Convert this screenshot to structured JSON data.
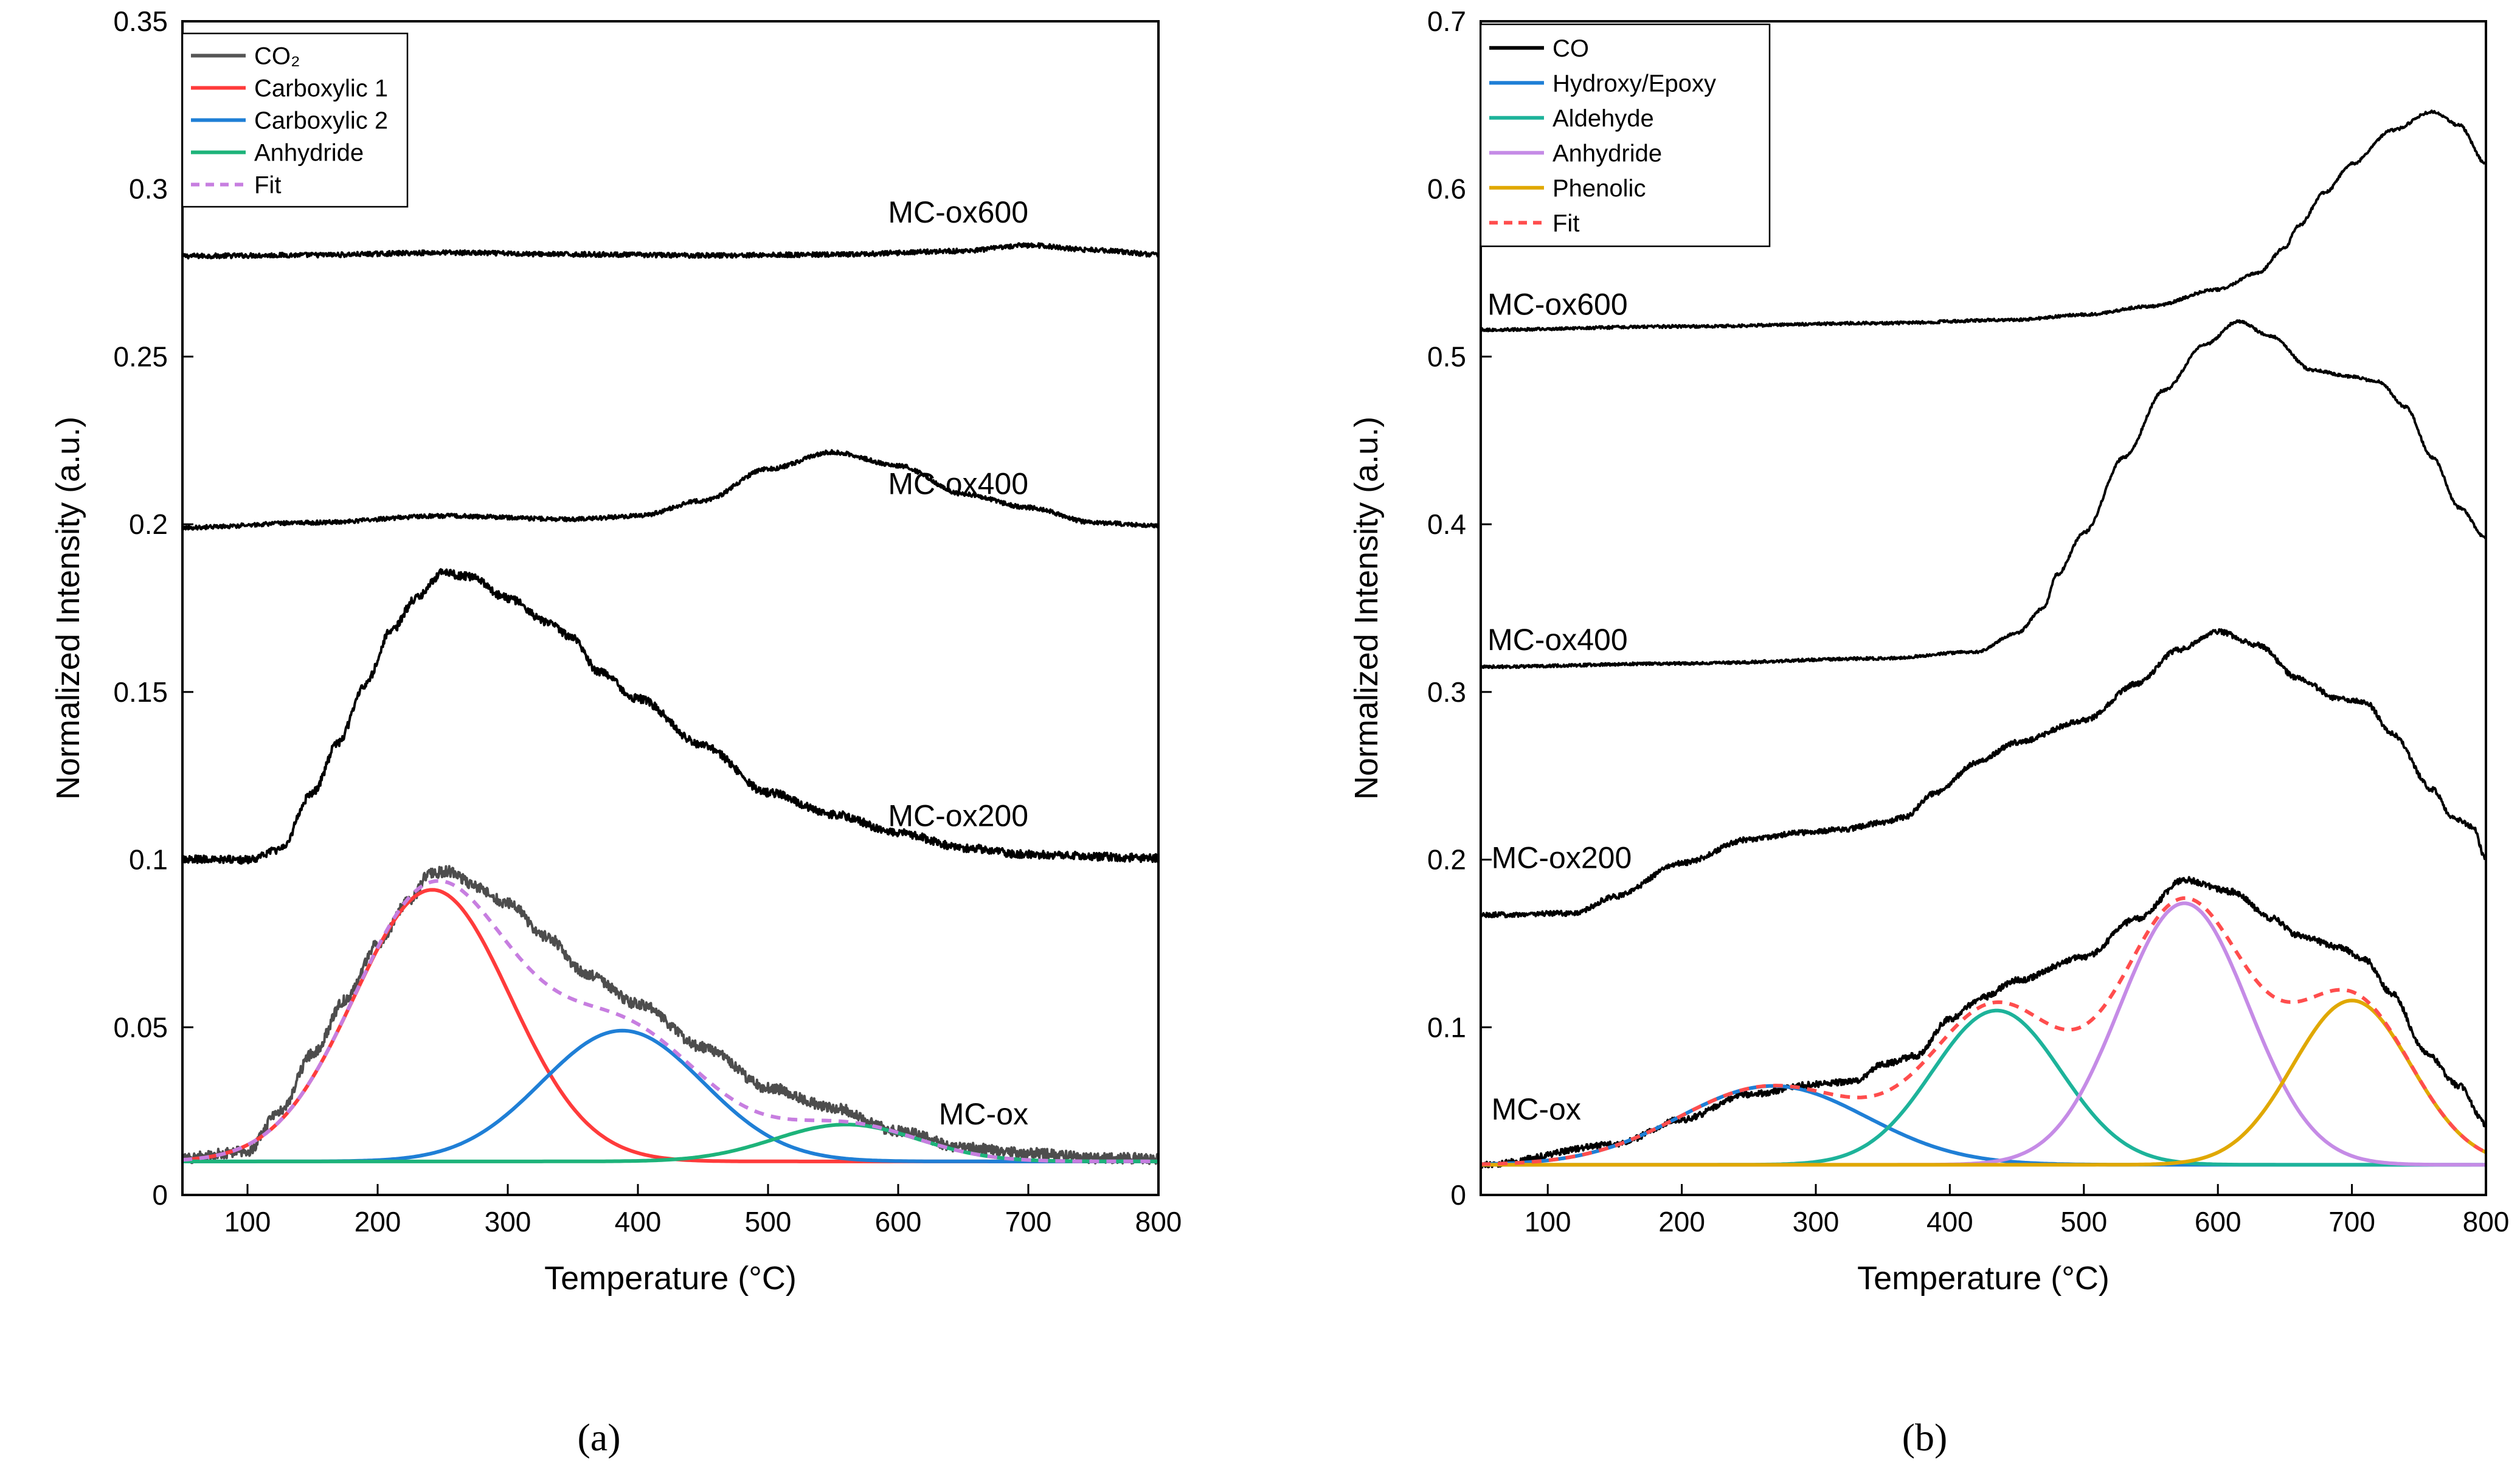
{
  "chart_data": [
    {
      "id": "a",
      "type": "line",
      "panel_label": "(a)",
      "xlabel": "Temperature (°C)",
      "ylabel": "Normalized Intensity (a.u.)",
      "xlim": [
        50,
        800
      ],
      "ylim": [
        0,
        0.35
      ],
      "x_ticks": [
        100,
        200,
        300,
        400,
        500,
        600,
        700,
        800
      ],
      "y_ticks": [
        0,
        0.05,
        0.1,
        0.15,
        0.2,
        0.25,
        0.3,
        0.35
      ],
      "y_tick_labels": [
        "0",
        "0.05",
        "0.1",
        "0.15",
        "0.2",
        "0.25",
        "0.3",
        "0.35"
      ],
      "legend_position": "top-left",
      "legend": [
        {
          "label": "CO₂",
          "color": "#555555",
          "dash": "solid"
        },
        {
          "label": "Carboxylic 1",
          "color": "#ff3b3b",
          "dash": "solid"
        },
        {
          "label": "Carboxylic 2",
          "color": "#1f7fd6",
          "dash": "solid"
        },
        {
          "label": "Anhydride",
          "color": "#1db37a",
          "dash": "solid"
        },
        {
          "label": "Fit",
          "color": "#c77ee0",
          "dash": "dashed"
        }
      ],
      "sample_labels": [
        {
          "text": "MC-ox600",
          "x": 700,
          "y": 0.29
        },
        {
          "text": "MC-ox400",
          "x": 700,
          "y": 0.209
        },
        {
          "text": "MC-ox200",
          "x": 700,
          "y": 0.11
        },
        {
          "text": "MC-ox",
          "x": 700,
          "y": 0.021
        }
      ],
      "series": [
        {
          "role": "measured",
          "color": "#000000",
          "noise": 0.0007,
          "points": [
            [
              50,
              0.28
            ],
            [
              150,
              0.2803
            ],
            [
              250,
              0.281
            ],
            [
              350,
              0.2805
            ],
            [
              450,
              0.2802
            ],
            [
              550,
              0.2804
            ],
            [
              650,
              0.2815
            ],
            [
              700,
              0.2832
            ],
            [
              750,
              0.2818
            ],
            [
              800,
              0.2805
            ]
          ]
        },
        {
          "role": "measured",
          "color": "#000000",
          "noise": 0.0006,
          "points": [
            [
              50,
              0.199
            ],
            [
              150,
              0.2005
            ],
            [
              250,
              0.2025
            ],
            [
              350,
              0.2015
            ],
            [
              400,
              0.2025
            ],
            [
              450,
              0.207
            ],
            [
              500,
              0.2165
            ],
            [
              550,
              0.2215
            ],
            [
              600,
              0.2175
            ],
            [
              650,
              0.209
            ],
            [
              700,
              0.205
            ],
            [
              750,
              0.2005
            ],
            [
              800,
              0.1995
            ]
          ]
        },
        {
          "role": "measured",
          "color": "#000000",
          "noise": 0.0012,
          "points": [
            [
              50,
              0.1
            ],
            [
              100,
              0.1
            ],
            [
              125,
              0.103
            ],
            [
              150,
              0.12
            ],
            [
              170,
              0.135
            ],
            [
              190,
              0.152
            ],
            [
              210,
              0.168
            ],
            [
              230,
              0.178
            ],
            [
              250,
              0.1855
            ],
            [
              270,
              0.1845
            ],
            [
              300,
              0.178
            ],
            [
              330,
              0.171
            ],
            [
              350,
              0.166
            ],
            [
              370,
              0.156
            ],
            [
              400,
              0.148
            ],
            [
              450,
              0.134
            ],
            [
              500,
              0.12
            ],
            [
              550,
              0.1135
            ],
            [
              600,
              0.108
            ],
            [
              650,
              0.1035
            ],
            [
              700,
              0.1015
            ],
            [
              800,
              0.1005
            ]
          ]
        },
        {
          "role": "measured",
          "color": "#4d4d4d",
          "noise": 0.0016,
          "points": [
            [
              50,
              0.011
            ],
            [
              100,
              0.013
            ],
            [
              125,
              0.025
            ],
            [
              150,
              0.042
            ],
            [
              175,
              0.058
            ],
            [
              200,
              0.075
            ],
            [
              225,
              0.088
            ],
            [
              240,
              0.096
            ],
            [
              255,
              0.0965
            ],
            [
              275,
              0.092
            ],
            [
              300,
              0.087
            ],
            [
              330,
              0.077
            ],
            [
              360,
              0.066
            ],
            [
              400,
              0.057
            ],
            [
              450,
              0.044
            ],
            [
              500,
              0.032
            ],
            [
              550,
              0.026
            ],
            [
              600,
              0.019
            ],
            [
              650,
              0.014
            ],
            [
              700,
              0.0125
            ],
            [
              750,
              0.011
            ],
            [
              800,
              0.0108
            ]
          ]
        },
        {
          "role": "gaussian",
          "color": "#ff3b3b",
          "base": 0.01,
          "amp": 0.081,
          "center": 242,
          "sigma": 60
        },
        {
          "role": "gaussian",
          "color": "#1f7fd6",
          "base": 0.01,
          "amp": 0.039,
          "center": 388,
          "sigma": 62
        },
        {
          "role": "gaussian",
          "color": "#1db37a",
          "base": 0.01,
          "amp": 0.011,
          "center": 560,
          "sigma": 55
        },
        {
          "role": "fit",
          "color": "#c77ee0",
          "dash": "dashed",
          "base": 0.01,
          "components": [
            [
              0.081,
              242,
              60
            ],
            [
              0.039,
              388,
              62
            ],
            [
              0.011,
              560,
              55
            ]
          ]
        }
      ]
    },
    {
      "id": "b",
      "type": "line",
      "panel_label": "(b)",
      "xlabel": "Temperature (°C)",
      "ylabel": "Normalized Intensity (a.u.)",
      "xlim": [
        50,
        800
      ],
      "ylim": [
        0,
        0.7
      ],
      "x_ticks": [
        100,
        200,
        300,
        400,
        500,
        600,
        700,
        800
      ],
      "y_ticks": [
        0,
        0.1,
        0.2,
        0.3,
        0.4,
        0.5,
        0.6,
        0.7
      ],
      "y_tick_labels": [
        "0",
        "0.1",
        "0.2",
        "0.3",
        "0.4",
        "0.5",
        "0.6",
        "0.7"
      ],
      "legend_position": "top-left",
      "legend": [
        {
          "label": "CO",
          "color": "#000000",
          "dash": "solid"
        },
        {
          "label": "Hydroxy/Epoxy",
          "color": "#1f7fd6",
          "dash": "solid"
        },
        {
          "label": "Aldehyde",
          "color": "#1db39a",
          "dash": "solid"
        },
        {
          "label": "Anhydride",
          "color": "#c58be6",
          "dash": "solid"
        },
        {
          "label": "Phenolic",
          "color": "#e0a800",
          "dash": "solid"
        },
        {
          "label": "Fit",
          "color": "#ff4d4d",
          "dash": "dashed"
        }
      ],
      "sample_labels": [
        {
          "text": "MC-ox600",
          "x": 55,
          "y": 0.525
        },
        {
          "text": "MC-ox400",
          "x": 55,
          "y": 0.325
        },
        {
          "text": "MC-ox200",
          "x": 58,
          "y": 0.195
        },
        {
          "text": "MC-ox",
          "x": 58,
          "y": 0.045
        }
      ],
      "series": [
        {
          "role": "measured",
          "color": "#000000",
          "noise": 0.0008,
          "points": [
            [
              50,
              0.516
            ],
            [
              200,
              0.518
            ],
            [
              350,
              0.52
            ],
            [
              450,
              0.522
            ],
            [
              500,
              0.525
            ],
            [
              550,
              0.53
            ],
            [
              600,
              0.54
            ],
            [
              630,
              0.55
            ],
            [
              650,
              0.565
            ],
            [
              660,
              0.578
            ],
            [
              680,
              0.598
            ],
            [
              700,
              0.615
            ],
            [
              730,
              0.635
            ],
            [
              760,
              0.646
            ],
            [
              780,
              0.638
            ],
            [
              800,
              0.615
            ]
          ]
        },
        {
          "role": "measured",
          "color": "#000000",
          "noise": 0.0008,
          "points": [
            [
              50,
              0.315
            ],
            [
              200,
              0.317
            ],
            [
              350,
              0.32
            ],
            [
              420,
              0.324
            ],
            [
              450,
              0.335
            ],
            [
              470,
              0.35
            ],
            [
              480,
              0.37
            ],
            [
              500,
              0.395
            ],
            [
              530,
              0.44
            ],
            [
              560,
              0.48
            ],
            [
              590,
              0.507
            ],
            [
              615,
              0.521
            ],
            [
              640,
              0.512
            ],
            [
              670,
              0.492
            ],
            [
              700,
              0.488
            ],
            [
              720,
              0.485
            ],
            [
              740,
              0.47
            ],
            [
              760,
              0.44
            ],
            [
              780,
              0.41
            ],
            [
              800,
              0.392
            ]
          ]
        },
        {
          "role": "measured",
          "color": "#000000",
          "noise": 0.0015,
          "points": [
            [
              50,
              0.167
            ],
            [
              120,
              0.168
            ],
            [
              150,
              0.178
            ],
            [
              200,
              0.198
            ],
            [
              250,
              0.212
            ],
            [
              290,
              0.216
            ],
            [
              320,
              0.218
            ],
            [
              350,
              0.222
            ],
            [
              365,
              0.225
            ],
            [
              390,
              0.24
            ],
            [
              420,
              0.258
            ],
            [
              450,
              0.27
            ],
            [
              500,
              0.283
            ],
            [
              540,
              0.305
            ],
            [
              570,
              0.325
            ],
            [
              600,
              0.336
            ],
            [
              630,
              0.328
            ],
            [
              660,
              0.308
            ],
            [
              690,
              0.296
            ],
            [
              710,
              0.294
            ],
            [
              730,
              0.275
            ],
            [
              760,
              0.242
            ],
            [
              775,
              0.225
            ],
            [
              790,
              0.22
            ],
            [
              800,
              0.2
            ]
          ]
        },
        {
          "role": "measured",
          "color": "#000000",
          "noise": 0.0018,
          "points": [
            [
              50,
              0.018
            ],
            [
              150,
              0.03
            ],
            [
              200,
              0.045
            ],
            [
              250,
              0.06
            ],
            [
              300,
              0.066
            ],
            [
              330,
              0.068
            ],
            [
              350,
              0.078
            ],
            [
              375,
              0.083
            ],
            [
              400,
              0.105
            ],
            [
              425,
              0.118
            ],
            [
              450,
              0.128
            ],
            [
              500,
              0.142
            ],
            [
              540,
              0.165
            ],
            [
              575,
              0.188
            ],
            [
              610,
              0.181
            ],
            [
              640,
              0.165
            ],
            [
              660,
              0.155
            ],
            [
              690,
              0.148
            ],
            [
              710,
              0.14
            ],
            [
              730,
              0.12
            ],
            [
              755,
              0.085
            ],
            [
              780,
              0.065
            ],
            [
              800,
              0.042
            ]
          ]
        },
        {
          "role": "gaussian",
          "color": "#1f7fd6",
          "base": 0.018,
          "amp": 0.047,
          "center": 268,
          "sigma": 70
        },
        {
          "role": "gaussian",
          "color": "#1db39a",
          "base": 0.018,
          "amp": 0.092,
          "center": 435,
          "sigma": 48
        },
        {
          "role": "gaussian",
          "color": "#c58be6",
          "base": 0.018,
          "amp": 0.156,
          "center": 575,
          "sigma": 48
        },
        {
          "role": "gaussian",
          "color": "#e0a800",
          "base": 0.018,
          "amp": 0.098,
          "center": 700,
          "sigma": 44
        },
        {
          "role": "fit",
          "color": "#ff4d4d",
          "dash": "dashed",
          "base": 0.018,
          "components": [
            [
              0.047,
              268,
              70
            ],
            [
              0.092,
              435,
              48
            ],
            [
              0.156,
              575,
              48
            ],
            [
              0.098,
              700,
              44
            ]
          ]
        }
      ]
    }
  ]
}
